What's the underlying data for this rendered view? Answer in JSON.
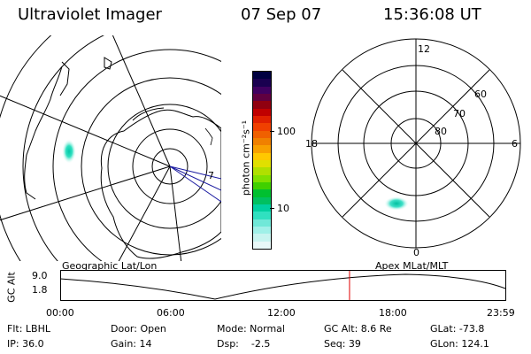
{
  "header": {
    "instrument": "Ultraviolet Imager",
    "date": "07 Sep 07",
    "time": "15:36:08 UT"
  },
  "geo_map": {
    "caption": "Geographic Lat/Lon",
    "meridian_label": "7"
  },
  "colorbar": {
    "unit_label": "photon cm⁻²s⁻¹",
    "ticks": [
      "100",
      "10"
    ],
    "scale": "log",
    "colors": [
      "#000040",
      "#1a0050",
      "#400060",
      "#600040",
      "#900010",
      "#c00000",
      "#e02000",
      "#f04000",
      "#f06000",
      "#f08000",
      "#f8a000",
      "#ffc800",
      "#e0e000",
      "#b0e000",
      "#80e000",
      "#40d000",
      "#00c030",
      "#00c060",
      "#00d0a0",
      "#30e0c0",
      "#70e8d8",
      "#a0f0e8",
      "#c8f4f0",
      "#e8f8f8"
    ]
  },
  "mag_map": {
    "caption": "Apex MLat/MLT",
    "mlt_labels": [
      "12",
      "18",
      "6",
      "0"
    ],
    "lat_labels": [
      "60",
      "70",
      "80"
    ]
  },
  "altitude_panel": {
    "ylabel": "GC Alt",
    "ticks": [
      "9.0",
      "1.8"
    ],
    "xticks": [
      "00:00",
      "06:00",
      "12:00",
      "18:00",
      "23:59"
    ],
    "current_time_marker_hours": 15.6
  },
  "status": {
    "row1": [
      "Flt: LBHL",
      "Door: Open",
      "Mode: Normal",
      "GC Alt: 8.6 Re",
      "GLat: -73.8"
    ],
    "row2": [
      "IP: 36.0",
      "Gain: 14",
      "Dsp:    -2.5",
      "Seq: 39",
      "GLon: 124.1"
    ]
  }
}
